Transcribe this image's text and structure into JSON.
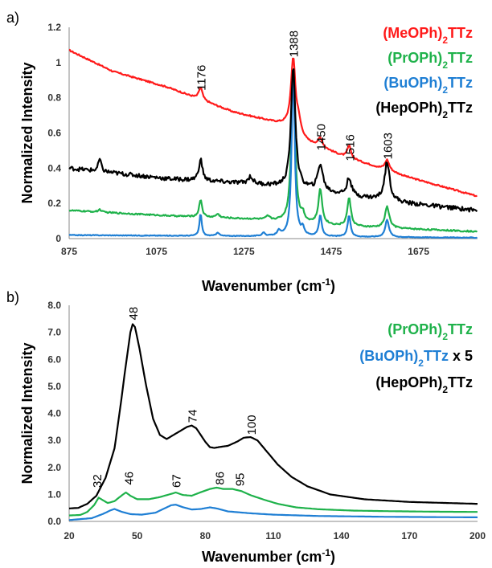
{
  "chart_data": [
    {
      "panel_label": "a)",
      "type": "line",
      "xlabel": "Wavenumber (cm",
      "xlabel_sup": "-1",
      "xlabel_end": ")",
      "ylabel": "Normalized Intensity",
      "xlim": [
        875,
        1810
      ],
      "ylim": [
        0,
        1.2
      ],
      "xticks": [
        875,
        1075,
        1275,
        1475,
        1675
      ],
      "yticks": [
        0,
        0.2,
        0.4,
        0.6,
        0.8,
        1.0,
        1.2
      ],
      "ytick_labels": [
        "0",
        "0.2",
        "0.4",
        "0.6",
        "0.8",
        "1",
        "1.2"
      ],
      "grid": false,
      "legend_position": "top-right",
      "peak_labels": [
        {
          "x": 1176,
          "y": 0.84,
          "text": "1176"
        },
        {
          "x": 1388,
          "y": 1.03,
          "text": "1388"
        },
        {
          "x": 1450,
          "y": 0.5,
          "text": "1450"
        },
        {
          "x": 1516,
          "y": 0.44,
          "text": "1516"
        },
        {
          "x": 1603,
          "y": 0.45,
          "text": "1603"
        }
      ],
      "series": [
        {
          "name": "(MeOPh)",
          "name_sub": "2",
          "name_end": "TTz",
          "color": "#ff1a1a",
          "baseline": [
            [
              875,
              1.07
            ],
            [
              900,
              1.04
            ],
            [
              925,
              1.01
            ],
            [
              975,
              0.95
            ],
            [
              1100,
              0.86
            ],
            [
              1250,
              0.72
            ],
            [
              1380,
              0.64
            ],
            [
              1420,
              0.55
            ],
            [
              1500,
              0.47
            ],
            [
              1650,
              0.35
            ],
            [
              1810,
              0.24
            ]
          ],
          "peaks": [
            [
              1176,
              0.07,
              5
            ],
            [
              1388,
              0.4,
              6
            ],
            [
              1400,
              0.06,
              6
            ],
            [
              1450,
              0.05,
              6
            ],
            [
              1516,
              0.07,
              5
            ],
            [
              1603,
              0.06,
              6
            ]
          ],
          "noise": 0.004
        },
        {
          "name": "(PrOPh)",
          "name_sub": "2",
          "name_end": "TTz",
          "color": "#1fb24b",
          "baseline": [
            [
              875,
              0.16
            ],
            [
              1100,
              0.13
            ],
            [
              1300,
              0.11
            ],
            [
              1500,
              0.07
            ],
            [
              1810,
              0.04
            ]
          ],
          "peaks": [
            [
              945,
              0.015,
              4
            ],
            [
              1176,
              0.1,
              4
            ],
            [
              1215,
              0.02,
              5
            ],
            [
              1330,
              0.02,
              5
            ],
            [
              1388,
              0.88,
              5
            ],
            [
              1410,
              0.04,
              4
            ],
            [
              1450,
              0.2,
              5
            ],
            [
              1516,
              0.16,
              5
            ],
            [
              1603,
              0.12,
              6
            ]
          ],
          "noise": 0.004
        },
        {
          "name": "(BuOPh)",
          "name_sub": "2",
          "name_end": "TTz",
          "color": "#1f7fd4",
          "baseline": [
            [
              875,
              0.02
            ],
            [
              1810,
              0.005
            ]
          ],
          "peaks": [
            [
              1176,
              0.13,
              3
            ],
            [
              1215,
              0.02,
              4
            ],
            [
              1320,
              0.02,
              4
            ],
            [
              1355,
              0.03,
              4
            ],
            [
              1388,
              0.98,
              4
            ],
            [
              1410,
              0.04,
              4
            ],
            [
              1450,
              0.12,
              4
            ],
            [
              1516,
              0.12,
              4
            ],
            [
              1603,
              0.1,
              5
            ]
          ],
          "noise": 0.002
        },
        {
          "name": "(HepOPh)",
          "name_sub": "2",
          "name_end": "TTz",
          "color": "#000000",
          "baseline": [
            [
              875,
              0.4
            ],
            [
              1100,
              0.34
            ],
            [
              1300,
              0.31
            ],
            [
              1420,
              0.28
            ],
            [
              1500,
              0.25
            ],
            [
              1650,
              0.2
            ],
            [
              1810,
              0.16
            ]
          ],
          "peaks": [
            [
              945,
              0.07,
              4
            ],
            [
              1176,
              0.12,
              5
            ],
            [
              1290,
              0.04,
              6
            ],
            [
              1388,
              0.69,
              6
            ],
            [
              1450,
              0.15,
              7
            ],
            [
              1516,
              0.1,
              6
            ],
            [
              1603,
              0.22,
              7
            ]
          ],
          "noise": 0.012
        }
      ]
    },
    {
      "panel_label": "b)",
      "type": "line",
      "xlabel": "Wavenumber (cm",
      "xlabel_sup": "-1",
      "xlabel_end": ")",
      "ylabel": "Normalized Intensity",
      "xlim": [
        20,
        200
      ],
      "ylim": [
        0,
        8
      ],
      "xticks": [
        20,
        50,
        80,
        110,
        140,
        170,
        200
      ],
      "yticks": [
        0,
        1,
        2,
        3,
        4,
        5,
        6,
        7,
        8
      ],
      "ytick_labels": [
        "0.0",
        "1.0",
        "2.0",
        "3.0",
        "4.0",
        "5.0",
        "6.0",
        "7.0",
        "8.0"
      ],
      "grid": false,
      "legend_position": "top-right",
      "peak_labels": [
        {
          "x": 32,
          "y": 1.25,
          "text": "32"
        },
        {
          "x": 46,
          "y": 1.35,
          "text": "46"
        },
        {
          "x": 48,
          "y": 7.45,
          "text": "48"
        },
        {
          "x": 67,
          "y": 1.25,
          "text": "67"
        },
        {
          "x": 74,
          "y": 3.65,
          "text": "74"
        },
        {
          "x": 86,
          "y": 1.35,
          "text": "86"
        },
        {
          "x": 95,
          "y": 1.3,
          "text": "95"
        },
        {
          "x": 100,
          "y": 3.2,
          "text": "100"
        }
      ],
      "series": [
        {
          "name": "(PrOPh)",
          "name_sub": "2",
          "name_end": "TTz",
          "color": "#1fb24b",
          "suffix": "",
          "points": [
            [
              20,
              0.22
            ],
            [
              25,
              0.24
            ],
            [
              28,
              0.35
            ],
            [
              31,
              0.6
            ],
            [
              33,
              0.88
            ],
            [
              35,
              0.78
            ],
            [
              37,
              0.68
            ],
            [
              40,
              0.75
            ],
            [
              43,
              0.95
            ],
            [
              45,
              1.07
            ],
            [
              47,
              0.95
            ],
            [
              50,
              0.82
            ],
            [
              55,
              0.82
            ],
            [
              60,
              0.9
            ],
            [
              65,
              1.02
            ],
            [
              67,
              1.07
            ],
            [
              70,
              0.98
            ],
            [
              74,
              0.95
            ],
            [
              78,
              1.08
            ],
            [
              82,
              1.2
            ],
            [
              85,
              1.25
            ],
            [
              88,
              1.2
            ],
            [
              92,
              1.2
            ],
            [
              96,
              1.12
            ],
            [
              100,
              0.97
            ],
            [
              106,
              0.8
            ],
            [
              112,
              0.65
            ],
            [
              120,
              0.52
            ],
            [
              130,
              0.45
            ],
            [
              145,
              0.4
            ],
            [
              160,
              0.38
            ],
            [
              180,
              0.36
            ],
            [
              200,
              0.35
            ]
          ]
        },
        {
          "name": "(BuOPh)",
          "name_sub": "2",
          "name_end": "TTz",
          "color": "#1f7fd4",
          "suffix": " x 5",
          "points": [
            [
              20,
              0.05
            ],
            [
              30,
              0.12
            ],
            [
              35,
              0.28
            ],
            [
              38,
              0.4
            ],
            [
              40,
              0.46
            ],
            [
              43,
              0.36
            ],
            [
              47,
              0.27
            ],
            [
              52,
              0.25
            ],
            [
              58,
              0.32
            ],
            [
              62,
              0.48
            ],
            [
              65,
              0.6
            ],
            [
              67,
              0.62
            ],
            [
              70,
              0.53
            ],
            [
              74,
              0.44
            ],
            [
              78,
              0.46
            ],
            [
              82,
              0.52
            ],
            [
              85,
              0.48
            ],
            [
              90,
              0.37
            ],
            [
              100,
              0.3
            ],
            [
              110,
              0.25
            ],
            [
              130,
              0.2
            ],
            [
              160,
              0.17
            ],
            [
              200,
              0.15
            ]
          ]
        },
        {
          "name": "(HepOPh)",
          "name_sub": "2",
          "name_end": "TTz",
          "color": "#000000",
          "suffix": "",
          "points": [
            [
              20,
              0.48
            ],
            [
              24,
              0.5
            ],
            [
              28,
              0.65
            ],
            [
              32,
              0.95
            ],
            [
              36,
              1.6
            ],
            [
              40,
              2.7
            ],
            [
              43,
              4.5
            ],
            [
              45,
              5.8
            ],
            [
              47,
              7.0
            ],
            [
              48,
              7.3
            ],
            [
              49,
              7.2
            ],
            [
              51,
              6.4
            ],
            [
              54,
              5.0
            ],
            [
              57,
              3.8
            ],
            [
              60,
              3.2
            ],
            [
              63,
              3.05
            ],
            [
              66,
              3.2
            ],
            [
              69,
              3.35
            ],
            [
              72,
              3.5
            ],
            [
              74,
              3.55
            ],
            [
              76,
              3.45
            ],
            [
              78,
              3.2
            ],
            [
              80,
              2.95
            ],
            [
              82,
              2.75
            ],
            [
              84,
              2.72
            ],
            [
              86,
              2.75
            ],
            [
              90,
              2.8
            ],
            [
              94,
              2.95
            ],
            [
              97,
              3.1
            ],
            [
              100,
              3.12
            ],
            [
              103,
              3.0
            ],
            [
              107,
              2.6
            ],
            [
              112,
              2.1
            ],
            [
              118,
              1.65
            ],
            [
              125,
              1.3
            ],
            [
              135,
              1.0
            ],
            [
              150,
              0.82
            ],
            [
              170,
              0.72
            ],
            [
              200,
              0.65
            ]
          ]
        }
      ]
    }
  ]
}
